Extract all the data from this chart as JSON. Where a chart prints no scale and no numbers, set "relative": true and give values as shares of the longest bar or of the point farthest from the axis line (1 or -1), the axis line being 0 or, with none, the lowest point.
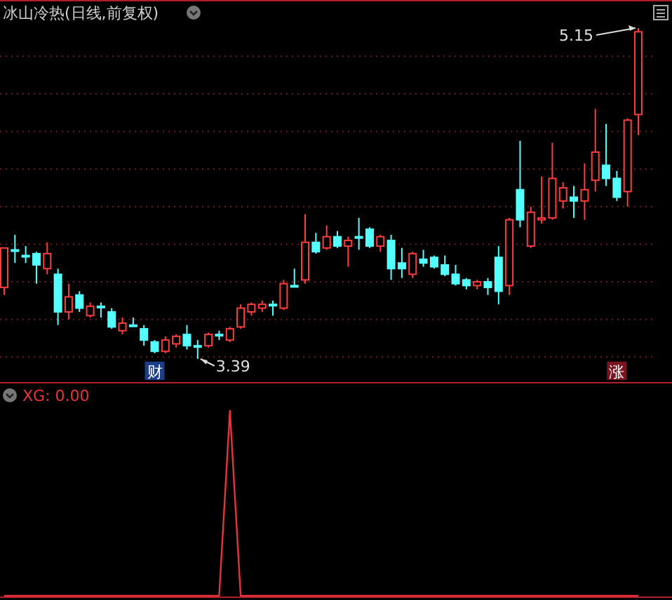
{
  "chart_data": [
    {
      "type": "candlestick",
      "title": "冰山冷热(日线,前复权)",
      "grid": true,
      "categories": [
        null,
        null,
        null,
        null,
        null,
        null,
        null,
        null,
        null,
        null,
        null,
        null,
        null,
        null,
        null,
        null,
        null,
        null,
        null,
        null,
        null,
        null,
        null,
        null,
        null,
        null,
        null,
        null,
        null,
        null,
        null,
        null,
        null,
        null,
        null,
        null,
        null,
        null,
        null,
        null,
        null,
        null,
        null,
        null,
        null,
        null,
        null,
        null,
        null,
        null,
        null,
        null,
        null,
        null,
        null,
        null,
        null,
        null,
        null,
        null
      ],
      "ohlc": [
        [
          3.77,
          3.98,
          3.73,
          3.98
        ],
        [
          3.97,
          4.05,
          3.9,
          3.97
        ],
        [
          3.94,
          3.99,
          3.9,
          3.94
        ],
        [
          3.95,
          3.96,
          3.79,
          3.89
        ],
        [
          3.87,
          4.01,
          3.84,
          3.95
        ],
        [
          3.84,
          3.87,
          3.57,
          3.64
        ],
        [
          3.64,
          3.79,
          3.6,
          3.72
        ],
        [
          3.73,
          3.75,
          3.64,
          3.66
        ],
        [
          3.62,
          3.69,
          3.61,
          3.67
        ],
        [
          3.67,
          3.69,
          3.61,
          3.67
        ],
        [
          3.64,
          3.66,
          3.55,
          3.56
        ],
        [
          3.54,
          3.61,
          3.52,
          3.58
        ],
        [
          3.57,
          3.61,
          3.56,
          3.57
        ],
        [
          3.55,
          3.57,
          3.46,
          3.49
        ],
        [
          3.48,
          3.49,
          3.42,
          3.43
        ],
        [
          3.43,
          3.51,
          3.42,
          3.49
        ],
        [
          3.47,
          3.52,
          3.45,
          3.51
        ],
        [
          3.52,
          3.57,
          3.44,
          3.46
        ],
        [
          3.46,
          3.49,
          3.39,
          3.46
        ],
        [
          3.46,
          3.53,
          3.45,
          3.52
        ],
        [
          3.52,
          3.54,
          3.49,
          3.52
        ],
        [
          3.49,
          3.56,
          3.48,
          3.55
        ],
        [
          3.56,
          3.68,
          3.55,
          3.66
        ],
        [
          3.64,
          3.69,
          3.62,
          3.68
        ],
        [
          3.66,
          3.7,
          3.64,
          3.68
        ],
        [
          3.68,
          3.7,
          3.62,
          3.68
        ],
        [
          3.66,
          3.81,
          3.65,
          3.79
        ],
        [
          3.78,
          3.87,
          3.77,
          3.78
        ],
        [
          3.81,
          4.16,
          3.79,
          4.01
        ],
        [
          4.01,
          4.06,
          3.95,
          3.96
        ],
        [
          3.98,
          4.1,
          3.97,
          4.04
        ],
        [
          4.04,
          4.07,
          3.98,
          3.99
        ],
        [
          3.99,
          4.04,
          3.88,
          4.02
        ],
        [
          4.04,
          4.14,
          3.97,
          4.04
        ],
        [
          4.08,
          4.09,
          3.98,
          3.99
        ],
        [
          3.99,
          4.05,
          3.96,
          4.04
        ],
        [
          4.02,
          4.05,
          3.81,
          3.87
        ],
        [
          3.9,
          3.98,
          3.82,
          3.87
        ],
        [
          3.84,
          3.96,
          3.82,
          3.95
        ],
        [
          3.92,
          3.97,
          3.88,
          3.9
        ],
        [
          3.93,
          3.94,
          3.87,
          3.88
        ],
        [
          3.89,
          3.94,
          3.83,
          3.84
        ],
        [
          3.84,
          3.89,
          3.78,
          3.79
        ],
        [
          3.81,
          3.82,
          3.76,
          3.78
        ],
        [
          3.78,
          3.81,
          3.76,
          3.8
        ],
        [
          3.8,
          3.82,
          3.73,
          3.77
        ],
        [
          3.93,
          3.99,
          3.68,
          3.75
        ],
        [
          3.78,
          4.14,
          3.73,
          4.13
        ],
        [
          4.29,
          4.55,
          4.09,
          4.13
        ],
        [
          3.99,
          4.2,
          3.98,
          4.17
        ],
        [
          4.13,
          4.36,
          4.11,
          4.14
        ],
        [
          4.14,
          4.54,
          4.13,
          4.35
        ],
        [
          4.23,
          4.33,
          4.19,
          4.3
        ],
        [
          4.25,
          4.31,
          4.14,
          4.23
        ],
        [
          4.23,
          4.43,
          4.13,
          4.29
        ],
        [
          4.34,
          4.72,
          4.28,
          4.49
        ],
        [
          4.42,
          4.64,
          4.31,
          4.35
        ],
        [
          4.35,
          4.39,
          4.23,
          4.25
        ],
        [
          4.28,
          4.67,
          4.2,
          4.66
        ],
        [
          4.69,
          5.15,
          4.58,
          5.13
        ]
      ],
      "yticks": [
        {
          "value": 3.4,
          "label": null
        },
        {
          "value": 3.6,
          "label": null
        },
        {
          "value": 3.8,
          "label": null
        },
        {
          "value": 4.0,
          "label": null
        },
        {
          "value": 4.2,
          "label": null
        },
        {
          "value": 4.4,
          "label": null
        },
        {
          "value": 4.6,
          "label": null
        },
        {
          "value": 4.8,
          "label": null
        },
        {
          "value": 5.0,
          "label": null
        }
      ],
      "annotations": [
        "5.15",
        "3.39",
        "财",
        "涨"
      ]
    },
    {
      "type": "line",
      "relative": true,
      "categories": [
        null,
        null,
        null,
        null,
        null,
        null,
        null,
        null,
        null,
        null,
        null,
        null,
        null,
        null,
        null,
        null,
        null,
        null,
        null,
        null,
        null,
        null,
        null,
        null,
        null,
        null,
        null,
        null,
        null,
        null,
        null,
        null,
        null,
        null,
        null,
        null,
        null,
        null,
        null,
        null,
        null,
        null,
        null,
        null,
        null,
        null,
        null,
        null,
        null,
        null,
        null,
        null,
        null,
        null,
        null,
        null,
        null,
        null,
        null,
        null
      ],
      "series": [
        {
          "name": "XG: 0.00",
          "color": "#e8323c",
          "values": [
            0,
            0,
            0,
            0,
            0,
            0,
            0,
            0,
            0,
            0,
            0,
            0,
            0,
            0,
            0,
            0,
            0,
            0,
            0,
            0,
            0,
            1,
            0,
            0,
            0,
            0,
            0,
            0,
            0,
            0,
            0,
            0,
            0,
            0,
            0,
            0,
            0,
            0,
            0,
            0,
            0,
            0,
            0,
            0,
            0,
            0,
            0,
            0,
            0,
            0,
            0,
            0,
            0,
            0,
            0,
            0,
            0,
            0,
            0,
            0
          ]
        }
      ]
    }
  ]
}
